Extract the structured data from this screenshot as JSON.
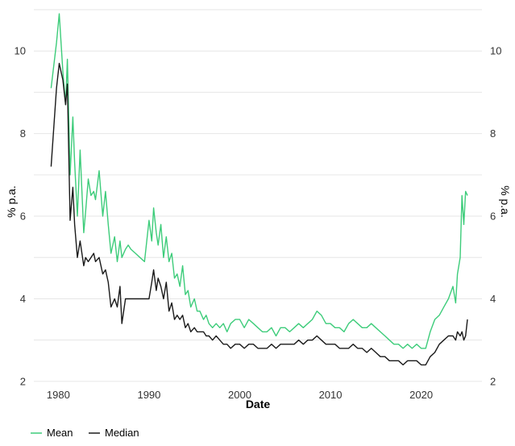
{
  "chart_data": {
    "type": "line",
    "xlabel": "Date",
    "ylabel": "% p.a.",
    "xlim": [
      1977.3,
      2026.7
    ],
    "ylim": [
      1.9,
      11.0
    ],
    "x_ticks": [
      1980,
      1990,
      2000,
      2010,
      2020
    ],
    "y_ticks": [
      2,
      4,
      6,
      8,
      10
    ],
    "grid": "horizontal",
    "legend_position": "bottom-left",
    "series": [
      {
        "name": "Mean",
        "color": "#3dcc7a",
        "x": [
          1979.2,
          1979.8,
          1980.1,
          1980.5,
          1980.8,
          1981.0,
          1981.3,
          1981.6,
          1981.8,
          1982.1,
          1982.4,
          1982.8,
          1983.0,
          1983.3,
          1983.6,
          1983.9,
          1984.1,
          1984.5,
          1984.9,
          1985.2,
          1985.5,
          1985.8,
          1986.2,
          1986.5,
          1986.8,
          1987.0,
          1987.4,
          1987.7,
          1988.0,
          1988.5,
          1989.0,
          1989.5,
          1990.0,
          1990.3,
          1990.5,
          1990.8,
          1991.0,
          1991.3,
          1991.6,
          1991.9,
          1992.2,
          1992.5,
          1992.8,
          1993.1,
          1993.4,
          1993.7,
          1994.0,
          1994.3,
          1994.6,
          1995.0,
          1995.3,
          1995.6,
          1996.0,
          1996.3,
          1996.6,
          1997.0,
          1997.4,
          1997.8,
          1998.2,
          1998.6,
          1999.0,
          1999.5,
          2000.0,
          2000.5,
          2001.0,
          2001.5,
          2002.0,
          2002.5,
          2003.0,
          2003.5,
          2004.0,
          2004.5,
          2005.0,
          2005.5,
          2006.0,
          2006.5,
          2007.0,
          2007.5,
          2008.0,
          2008.5,
          2009.0,
          2009.5,
          2010.0,
          2010.5,
          2011.0,
          2011.5,
          2012.0,
          2012.5,
          2013.0,
          2013.5,
          2014.0,
          2014.5,
          2015.0,
          2015.5,
          2016.0,
          2016.5,
          2017.0,
          2017.5,
          2018.0,
          2018.5,
          2019.0,
          2019.5,
          2020.0,
          2020.5,
          2021.0,
          2021.5,
          2022.0,
          2022.5,
          2023.0,
          2023.5,
          2023.8,
          2024.0,
          2024.3,
          2024.5,
          2024.7,
          2024.9,
          2025.1
        ],
        "y": [
          9.1,
          10.2,
          10.9,
          9.5,
          8.7,
          9.8,
          7.0,
          8.4,
          7.3,
          6.0,
          7.6,
          5.6,
          6.1,
          6.9,
          6.5,
          6.6,
          6.4,
          7.1,
          6.0,
          6.6,
          5.8,
          5.1,
          5.5,
          4.9,
          5.4,
          5.0,
          5.2,
          5.3,
          5.2,
          5.1,
          5.0,
          4.9,
          5.9,
          5.4,
          6.2,
          5.6,
          5.3,
          5.8,
          5.0,
          5.5,
          4.9,
          5.1,
          4.5,
          4.6,
          4.3,
          4.8,
          4.1,
          4.2,
          3.8,
          4.0,
          3.7,
          3.7,
          3.5,
          3.6,
          3.4,
          3.3,
          3.4,
          3.3,
          3.4,
          3.2,
          3.4,
          3.5,
          3.5,
          3.3,
          3.5,
          3.4,
          3.3,
          3.2,
          3.2,
          3.3,
          3.1,
          3.3,
          3.3,
          3.2,
          3.3,
          3.4,
          3.3,
          3.4,
          3.5,
          3.7,
          3.6,
          3.4,
          3.4,
          3.3,
          3.3,
          3.2,
          3.4,
          3.5,
          3.4,
          3.3,
          3.3,
          3.4,
          3.3,
          3.2,
          3.1,
          3.0,
          2.9,
          2.9,
          2.8,
          2.9,
          2.8,
          2.9,
          2.8,
          2.8,
          3.2,
          3.5,
          3.6,
          3.8,
          4.0,
          4.3,
          3.9,
          4.6,
          5.0,
          6.5,
          5.8,
          6.6,
          6.5
        ]
      },
      {
        "name": "Median",
        "color": "#1a1a1a",
        "x": [
          1979.2,
          1979.8,
          1980.1,
          1980.5,
          1980.8,
          1981.0,
          1981.3,
          1981.6,
          1981.8,
          1982.1,
          1982.4,
          1982.8,
          1983.0,
          1983.3,
          1983.6,
          1983.9,
          1984.1,
          1984.5,
          1984.9,
          1985.2,
          1985.5,
          1985.8,
          1986.2,
          1986.5,
          1986.8,
          1987.0,
          1987.4,
          1987.7,
          1988.0,
          1988.5,
          1989.0,
          1989.5,
          1990.0,
          1990.3,
          1990.5,
          1990.8,
          1991.0,
          1991.3,
          1991.6,
          1991.9,
          1992.2,
          1992.5,
          1992.8,
          1993.1,
          1993.4,
          1993.7,
          1994.0,
          1994.3,
          1994.6,
          1995.0,
          1995.3,
          1995.6,
          1996.0,
          1996.3,
          1996.6,
          1997.0,
          1997.4,
          1997.8,
          1998.2,
          1998.6,
          1999.0,
          1999.5,
          2000.0,
          2000.5,
          2001.0,
          2001.5,
          2002.0,
          2002.5,
          2003.0,
          2003.5,
          2004.0,
          2004.5,
          2005.0,
          2005.5,
          2006.0,
          2006.5,
          2007.0,
          2007.5,
          2008.0,
          2008.5,
          2009.0,
          2009.5,
          2010.0,
          2010.5,
          2011.0,
          2011.5,
          2012.0,
          2012.5,
          2013.0,
          2013.5,
          2014.0,
          2014.5,
          2015.0,
          2015.5,
          2016.0,
          2016.5,
          2017.0,
          2017.5,
          2018.0,
          2018.5,
          2019.0,
          2019.5,
          2020.0,
          2020.5,
          2021.0,
          2021.5,
          2022.0,
          2022.5,
          2023.0,
          2023.5,
          2023.8,
          2024.0,
          2024.3,
          2024.5,
          2024.7,
          2024.9,
          2025.1
        ],
        "y": [
          7.2,
          9.1,
          9.7,
          9.3,
          8.7,
          9.2,
          5.9,
          6.7,
          5.8,
          5.0,
          5.4,
          4.8,
          5.0,
          4.9,
          5.0,
          5.1,
          4.9,
          5.0,
          4.6,
          4.7,
          4.4,
          3.8,
          4.0,
          3.8,
          4.3,
          3.4,
          4.0,
          4.0,
          4.0,
          4.0,
          4.0,
          4.0,
          4.0,
          4.4,
          4.7,
          4.2,
          4.5,
          4.3,
          4.0,
          4.4,
          3.7,
          3.9,
          3.5,
          3.6,
          3.5,
          3.6,
          3.3,
          3.4,
          3.2,
          3.3,
          3.2,
          3.2,
          3.2,
          3.1,
          3.1,
          3.0,
          3.1,
          3.0,
          2.9,
          2.9,
          2.8,
          2.9,
          2.9,
          2.8,
          2.9,
          2.9,
          2.8,
          2.8,
          2.8,
          2.9,
          2.8,
          2.9,
          2.9,
          2.9,
          2.9,
          3.0,
          2.9,
          3.0,
          3.0,
          3.1,
          3.0,
          2.9,
          2.9,
          2.9,
          2.8,
          2.8,
          2.8,
          2.9,
          2.8,
          2.8,
          2.7,
          2.8,
          2.7,
          2.6,
          2.6,
          2.5,
          2.5,
          2.5,
          2.4,
          2.5,
          2.5,
          2.5,
          2.4,
          2.4,
          2.6,
          2.7,
          2.9,
          3.0,
          3.1,
          3.1,
          3.0,
          3.2,
          3.1,
          3.2,
          3.0,
          3.1,
          3.5
        ]
      }
    ]
  }
}
